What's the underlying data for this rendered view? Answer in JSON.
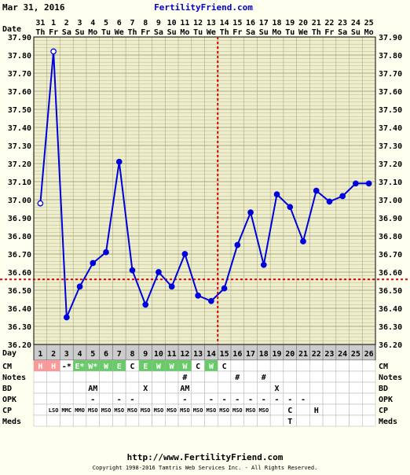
{
  "header": {
    "date": "Mar 31, 2016",
    "site": "FertilityFriend.com"
  },
  "footer": {
    "url": "http://www.FertilityFriend.com",
    "copyright": "Copyright 1998-2016 Tamtris Web Services Inc. - All Rights Reserved."
  },
  "chart_data": {
    "type": "line",
    "date_label": "Date",
    "day_label": "Day",
    "dates": [
      "31",
      "1",
      "2",
      "3",
      "4",
      "5",
      "6",
      "7",
      "8",
      "9",
      "10",
      "11",
      "12",
      "13",
      "14",
      "15",
      "16",
      "17",
      "18",
      "19",
      "20",
      "21",
      "22",
      "23",
      "24",
      "25"
    ],
    "weekdays": [
      "Th",
      "Fr",
      "Sa",
      "Su",
      "Mo",
      "Tu",
      "We",
      "Th",
      "Fr",
      "Sa",
      "Su",
      "Mo",
      "Tu",
      "We",
      "Th",
      "Fr",
      "Sa",
      "Su",
      "Mo",
      "Tu",
      "We",
      "Th",
      "Fr",
      "Sa",
      "Su",
      "Mo"
    ],
    "days": [
      "1",
      "2",
      "3",
      "4",
      "5",
      "6",
      "7",
      "8",
      "9",
      "10",
      "11",
      "12",
      "13",
      "14",
      "15",
      "16",
      "17",
      "18",
      "19",
      "20",
      "21",
      "22",
      "23",
      "24",
      "25",
      "26"
    ],
    "y_ticks": [
      "37.90",
      "37.80",
      "37.70",
      "37.60",
      "37.50",
      "37.40",
      "37.30",
      "37.20",
      "37.10",
      "37.00",
      "36.90",
      "36.80",
      "36.70",
      "36.60",
      "36.50",
      "36.40",
      "36.30",
      "36.20"
    ],
    "ylim": [
      36.2,
      37.9
    ],
    "temps": [
      36.98,
      37.82,
      36.35,
      36.52,
      36.65,
      36.71,
      37.21,
      36.61,
      36.42,
      36.6,
      36.52,
      36.7,
      36.47,
      36.44,
      36.51,
      36.75,
      36.93,
      36.64,
      37.03,
      36.96,
      36.77,
      37.05,
      36.99,
      37.02,
      37.09,
      37.09
    ],
    "hollow_points": [
      0,
      1
    ],
    "coverline": 36.56,
    "ovulation_day_index": 14,
    "series_color": "#0000dd",
    "coverline_color": "#dd0000",
    "rows": [
      {
        "label": "CM",
        "key": "cm",
        "cells": [
          "H",
          "H",
          "-*",
          "E*",
          "W*",
          "W",
          "E",
          "C",
          "E",
          "W",
          "W",
          "W",
          "C",
          "W",
          "C",
          "",
          "",
          "",
          "",
          "",
          "",
          "",
          "",
          "",
          "",
          ""
        ],
        "fills": [
          "#ff9999",
          "#ff9999",
          "",
          "#66cc66",
          "#66cc66",
          "#66cc66",
          "#66cc66",
          "",
          "#66cc66",
          "#66cc66",
          "#66cc66",
          "#66cc66",
          "",
          "#66cc66",
          "",
          "",
          "",
          "",
          "",
          "",
          "",
          "",
          "",
          "",
          "",
          ""
        ]
      },
      {
        "label": "Notes",
        "key": "notes",
        "cells": [
          "",
          "",
          "",
          "",
          "",
          "",
          "",
          "",
          "",
          "",
          "",
          "#",
          "",
          "",
          "",
          "#",
          "",
          "#",
          "",
          "",
          "",
          "",
          "",
          "",
          "",
          ""
        ]
      },
      {
        "label": "BD",
        "key": "bd",
        "cells": [
          "",
          "",
          "",
          "",
          "AM",
          "",
          "",
          "",
          "X",
          "",
          "",
          "AM",
          "",
          "",
          "",
          "",
          "",
          "",
          "X",
          "",
          "",
          "",
          "",
          "",
          "",
          ""
        ]
      },
      {
        "label": "OPK",
        "key": "opk",
        "cells": [
          "",
          "",
          "",
          "",
          "-",
          "",
          "-",
          "-",
          "",
          "",
          "",
          "-",
          "",
          "-",
          "-",
          "-",
          "-",
          "-",
          "-",
          "-",
          "-",
          "",
          "",
          "",
          "",
          ""
        ]
      },
      {
        "label": "CP",
        "key": "cp",
        "cells": [
          "",
          "LSO",
          "MMC",
          "MMO",
          "MSO",
          "MSO",
          "MSO",
          "MSO",
          "MSO",
          "MSO",
          "MSO",
          "MSO",
          "MSO",
          "MSO",
          "MSO",
          "MSO",
          "MSO",
          "MSO",
          "",
          "C",
          "",
          "H",
          "",
          "",
          "",
          ""
        ]
      },
      {
        "label": "Meds",
        "key": "meds",
        "cells": [
          "",
          "",
          "",
          "",
          "",
          "",
          "",
          "",
          "",
          "",
          "",
          "",
          "",
          "",
          "",
          "",
          "",
          "",
          "",
          "T",
          "",
          "",
          "",
          "",
          "",
          ""
        ]
      }
    ]
  }
}
